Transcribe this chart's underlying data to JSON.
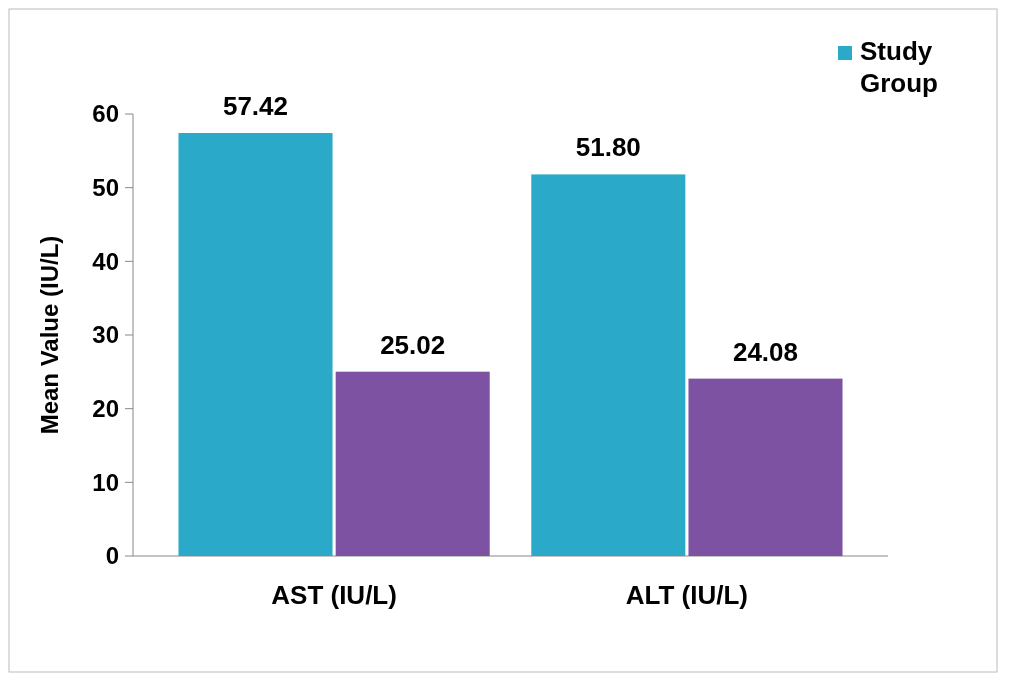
{
  "chart_data": {
    "type": "bar",
    "ylabel": "Mean Value (IU/L)",
    "categories": [
      "AST (IU/L)",
      "ALT (IU/L)"
    ],
    "series": [
      {
        "name": "Study Group",
        "color": "#2ba9c9",
        "values": [
          57.42,
          51.8
        ]
      },
      {
        "color": "#7d52a3",
        "values": [
          25.02,
          24.08
        ]
      }
    ],
    "value_labels": [
      [
        "57.42",
        "51.80"
      ],
      [
        "25.02",
        "24.08"
      ]
    ],
    "ylim": [
      0,
      60
    ],
    "yticks": [
      0,
      10,
      20,
      30,
      40,
      50,
      60
    ],
    "legend": "top right",
    "grid": false
  }
}
